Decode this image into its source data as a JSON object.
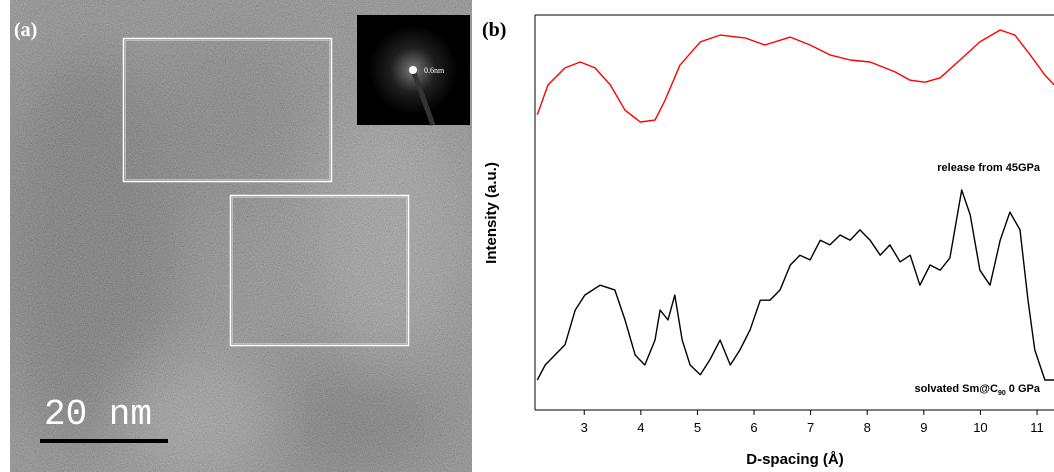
{
  "image": {
    "label": "(a)",
    "scale_bar": "20 nm",
    "inset_label": "0.6nm"
  },
  "chart_data": {
    "type": "line",
    "panel_label": "(b)",
    "xlabel": "D-spacing (Å)",
    "ylabel": "Intensity (a.u.)",
    "xlim": [
      2.13,
      11.3
    ],
    "xticks": [
      3,
      4,
      5,
      6,
      7,
      8,
      9,
      10,
      11
    ],
    "ylim": [
      0,
      100
    ],
    "annotations": [
      {
        "text": "release from 45GPa"
      },
      {
        "text": "solvated Sm@C",
        "sub": "90",
        "tail": " 0 GPa"
      }
    ],
    "series": [
      {
        "color": "#ff0000",
        "x": [
          2.17,
          2.36,
          2.66,
          2.93,
          3.19,
          3.46,
          3.72,
          3.99,
          4.25,
          4.43,
          4.69,
          5.05,
          5.4,
          5.84,
          6.19,
          6.64,
          6.99,
          7.34,
          7.7,
          8.05,
          8.49,
          8.76,
          9.02,
          9.29,
          9.64,
          9.99,
          10.35,
          10.61,
          10.88,
          11.14,
          11.3
        ],
        "values": [
          74.7,
          82.3,
          86.6,
          88.1,
          86.6,
          82.3,
          75.9,
          72.9,
          73.4,
          78.5,
          87.3,
          93.2,
          94.9,
          94.2,
          92.4,
          94.4,
          92.4,
          89.9,
          88.6,
          88.1,
          85.6,
          83.5,
          83.0,
          84.1,
          88.6,
          93.2,
          96.2,
          94.9,
          89.9,
          84.8,
          82.3
        ]
      },
      {
        "color": "#000000",
        "x": [
          2.17,
          2.31,
          2.48,
          2.66,
          2.84,
          3.01,
          3.28,
          3.54,
          3.72,
          3.9,
          4.07,
          4.25,
          4.34,
          4.48,
          4.6,
          4.73,
          4.87,
          5.05,
          5.22,
          5.4,
          5.58,
          5.75,
          5.93,
          6.11,
          6.28,
          6.46,
          6.64,
          6.81,
          6.99,
          7.17,
          7.34,
          7.52,
          7.7,
          7.87,
          8.05,
          8.23,
          8.4,
          8.58,
          8.76,
          8.93,
          9.11,
          9.29,
          9.46,
          9.67,
          9.82,
          9.99,
          10.17,
          10.35,
          10.52,
          10.7,
          10.84,
          10.96,
          11.14,
          11.3
        ],
        "values": [
          7.6,
          11.4,
          13.9,
          16.5,
          25.3,
          29.1,
          31.6,
          30.4,
          22.8,
          13.9,
          11.4,
          17.7,
          25.3,
          22.8,
          29.1,
          17.7,
          11.4,
          8.9,
          12.7,
          17.7,
          11.4,
          15.2,
          20.3,
          27.8,
          27.8,
          30.4,
          36.7,
          39.2,
          38.0,
          43.0,
          41.8,
          44.3,
          43.0,
          45.6,
          43.0,
          39.2,
          41.8,
          37.5,
          39.2,
          31.6,
          36.7,
          35.4,
          38.5,
          55.7,
          49.4,
          35.4,
          31.6,
          43.0,
          50.1,
          45.6,
          27.8,
          15.2,
          7.6,
          7.6
        ]
      }
    ]
  }
}
